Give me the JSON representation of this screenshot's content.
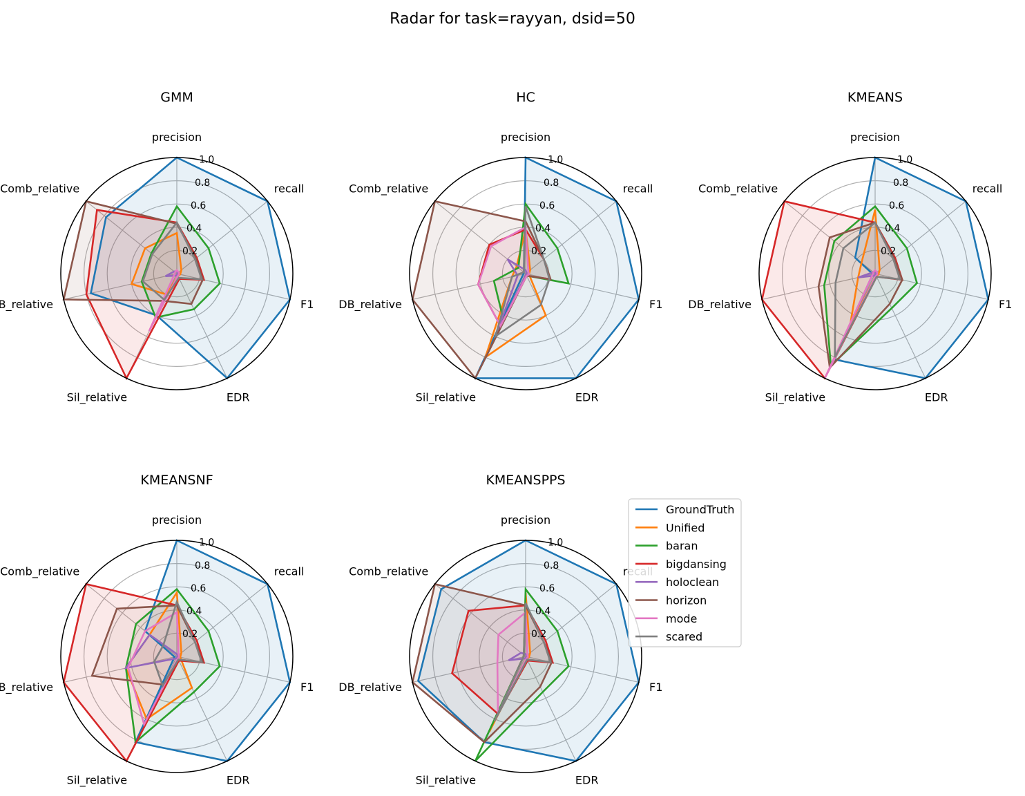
{
  "figure": {
    "title": "Radar for task=rayyan, dsid=50"
  },
  "axes": [
    "precision",
    "recall",
    "F1",
    "EDR",
    "Sil_relative",
    "DB_relative",
    "Comb_relative"
  ],
  "rticks": [
    "0.2",
    "0.4",
    "0.6",
    "0.8",
    "1.0"
  ],
  "legend": [
    {
      "name": "GroundTruth",
      "color": "#1f77b4"
    },
    {
      "name": "Unified",
      "color": "#ff7f0e"
    },
    {
      "name": "baran",
      "color": "#2ca02c"
    },
    {
      "name": "bigdansing",
      "color": "#d62728"
    },
    {
      "name": "holoclean",
      "color": "#9467bd"
    },
    {
      "name": "horizon",
      "color": "#8c564b"
    },
    {
      "name": "mode",
      "color": "#e377c2"
    },
    {
      "name": "scared",
      "color": "#7f7f7f"
    }
  ],
  "chart_data": [
    {
      "type": "radar",
      "title": "GMM",
      "rlim": [
        0,
        1
      ],
      "grid": true,
      "categories": [
        "precision",
        "recall",
        "F1",
        "EDR",
        "Sil_relative",
        "DB_relative",
        "Comb_relative"
      ],
      "series": [
        {
          "name": "GroundTruth",
          "color": "#1f77b4",
          "filled": true,
          "values": [
            1.0,
            1.0,
            1.0,
            1.0,
            0.4,
            0.76,
            0.78
          ]
        },
        {
          "name": "Unified",
          "color": "#ff7f0e",
          "values": [
            0.35,
            0.05,
            0.03,
            0.02,
            0.2,
            0.4,
            0.35
          ]
        },
        {
          "name": "baran",
          "color": "#2ca02c",
          "values": [
            0.58,
            0.35,
            0.38,
            0.34,
            0.42,
            0.31,
            0.28
          ]
        },
        {
          "name": "bigdansing",
          "color": "#d62728",
          "filled": true,
          "values": [
            0.44,
            0.22,
            0.24,
            0.05,
            1.0,
            0.8,
            0.88
          ]
        },
        {
          "name": "holoclean",
          "color": "#9467bd",
          "values": [
            0.02,
            0.01,
            0.01,
            0.01,
            0.02,
            0.1,
            0.03
          ]
        },
        {
          "name": "horizon",
          "color": "#8c564b",
          "filled": true,
          "values": [
            0.43,
            0.21,
            0.23,
            0.29,
            0.26,
            1.0,
            1.0
          ]
        },
        {
          "name": "mode",
          "color": "#e377c2",
          "values": [
            0.03,
            0.02,
            0.02,
            0.02,
            0.55,
            0.02,
            0.02
          ]
        },
        {
          "name": "scared",
          "color": "#7f7f7f",
          "values": [
            0.44,
            0.2,
            0.22,
            0.04,
            0.25,
            0.3,
            0.27
          ]
        }
      ]
    },
    {
      "type": "radar",
      "title": "HC",
      "rlim": [
        0,
        1
      ],
      "grid": true,
      "categories": [
        "precision",
        "recall",
        "F1",
        "EDR",
        "Sil_relative",
        "DB_relative",
        "Comb_relative"
      ],
      "series": [
        {
          "name": "GroundTruth",
          "color": "#1f77b4",
          "filled": true,
          "values": [
            1.0,
            1.0,
            1.0,
            1.0,
            1.0,
            0.02,
            0.02
          ]
        },
        {
          "name": "Unified",
          "color": "#ff7f0e",
          "values": [
            0.38,
            0.05,
            0.03,
            0.4,
            0.8,
            0.12,
            0.1
          ]
        },
        {
          "name": "baran",
          "color": "#2ca02c",
          "values": [
            0.6,
            0.35,
            0.38,
            0.02,
            0.44,
            0.28,
            0.08
          ]
        },
        {
          "name": "bigdansing",
          "color": "#d62728",
          "values": [
            0.38,
            0.2,
            0.22,
            0.02,
            0.5,
            0.42,
            0.4
          ]
        },
        {
          "name": "holoclean",
          "color": "#9467bd",
          "values": [
            0.03,
            0.01,
            0.01,
            0.01,
            0.6,
            0.07,
            0.2
          ]
        },
        {
          "name": "horizon",
          "color": "#8c564b",
          "filled": true,
          "values": [
            0.45,
            0.2,
            0.22,
            0.02,
            1.0,
            1.0,
            1.0
          ]
        },
        {
          "name": "mode",
          "color": "#e377c2",
          "values": [
            0.4,
            0.03,
            0.03,
            0.02,
            0.5,
            0.42,
            0.38
          ]
        },
        {
          "name": "scared",
          "color": "#7f7f7f",
          "values": [
            0.58,
            0.2,
            0.21,
            0.3,
            0.6,
            0.12,
            0.02
          ]
        }
      ]
    },
    {
      "type": "radar",
      "title": "KMEANS",
      "rlim": [
        0,
        1
      ],
      "grid": true,
      "categories": [
        "precision",
        "recall",
        "F1",
        "EDR",
        "Sil_relative",
        "DB_relative",
        "Comb_relative"
      ],
      "series": [
        {
          "name": "GroundTruth",
          "color": "#1f77b4",
          "filled": true,
          "values": [
            1.0,
            1.0,
            1.0,
            1.0,
            0.82,
            0.02,
            0.22
          ]
        },
        {
          "name": "Unified",
          "color": "#ff7f0e",
          "values": [
            0.55,
            0.05,
            0.03,
            0.02,
            0.5,
            0.15,
            0.15
          ]
        },
        {
          "name": "baran",
          "color": "#2ca02c",
          "values": [
            0.58,
            0.35,
            0.37,
            0.33,
            0.88,
            0.45,
            0.45
          ]
        },
        {
          "name": "bigdansing",
          "color": "#d62728",
          "filled": true,
          "values": [
            0.44,
            0.22,
            0.24,
            0.03,
            1.0,
            1.0,
            1.0
          ]
        },
        {
          "name": "holoclean",
          "color": "#9467bd",
          "values": [
            0.02,
            0.01,
            0.01,
            0.01,
            0.02,
            0.15,
            0.02
          ]
        },
        {
          "name": "horizon",
          "color": "#8c564b",
          "values": [
            0.44,
            0.21,
            0.24,
            0.29,
            0.9,
            0.5,
            0.5
          ]
        },
        {
          "name": "mode",
          "color": "#e377c2",
          "values": [
            0.03,
            0.02,
            0.02,
            0.02,
            1.0,
            0.02,
            0.02
          ]
        },
        {
          "name": "scared",
          "color": "#7f7f7f",
          "values": [
            0.44,
            0.2,
            0.22,
            0.03,
            0.8,
            0.35,
            0.35
          ]
        }
      ]
    },
    {
      "type": "radar",
      "title": "KMEANSNF",
      "rlim": [
        0,
        1
      ],
      "grid": true,
      "categories": [
        "precision",
        "recall",
        "F1",
        "EDR",
        "Sil_relative",
        "DB_relative",
        "Comb_relative"
      ],
      "series": [
        {
          "name": "GroundTruth",
          "color": "#1f77b4",
          "filled": true,
          "values": [
            1.0,
            1.0,
            1.0,
            1.0,
            0.82,
            0.02,
            0.35
          ]
        },
        {
          "name": "Unified",
          "color": "#ff7f0e",
          "values": [
            0.55,
            0.05,
            0.03,
            0.3,
            0.6,
            0.45,
            0.3
          ]
        },
        {
          "name": "baran",
          "color": "#2ca02c",
          "values": [
            0.58,
            0.35,
            0.38,
            0.34,
            0.82,
            0.45,
            0.45
          ]
        },
        {
          "name": "bigdansing",
          "color": "#d62728",
          "filled": true,
          "values": [
            0.44,
            0.22,
            0.24,
            0.04,
            1.0,
            1.0,
            1.0
          ]
        },
        {
          "name": "holoclean",
          "color": "#9467bd",
          "values": [
            0.02,
            0.01,
            0.01,
            0.01,
            0.02,
            0.45,
            0.3
          ]
        },
        {
          "name": "horizon",
          "color": "#8c564b",
          "values": [
            0.44,
            0.2,
            0.23,
            0.03,
            0.27,
            0.75,
            0.66
          ]
        },
        {
          "name": "mode",
          "color": "#e377c2",
          "values": [
            0.38,
            0.02,
            0.02,
            0.02,
            0.65,
            0.43,
            0.35
          ]
        },
        {
          "name": "scared",
          "color": "#7f7f7f",
          "values": [
            0.47,
            0.2,
            0.22,
            0.03,
            0.28,
            0.2,
            0.15
          ]
        }
      ]
    },
    {
      "type": "radar",
      "title": "KMEANSPPS",
      "rlim": [
        0,
        1
      ],
      "grid": true,
      "categories": [
        "precision",
        "recall",
        "F1",
        "EDR",
        "Sil_relative",
        "DB_relative",
        "Comb_relative"
      ],
      "series": [
        {
          "name": "GroundTruth",
          "color": "#1f77b4",
          "filled": true,
          "values": [
            1.0,
            1.0,
            1.0,
            1.0,
            0.82,
            0.95,
            0.93
          ]
        },
        {
          "name": "Unified",
          "color": "#ff7f0e",
          "values": [
            0.55,
            0.05,
            0.03,
            0.02,
            0.72,
            0.02,
            0.02
          ]
        },
        {
          "name": "baran",
          "color": "#2ca02c",
          "values": [
            0.58,
            0.35,
            0.38,
            0.34,
            1.0,
            0.02,
            0.02
          ]
        },
        {
          "name": "bigdansing",
          "color": "#d62728",
          "filled": true,
          "values": [
            0.44,
            0.22,
            0.24,
            0.04,
            0.55,
            0.65,
            0.63
          ]
        },
        {
          "name": "holoclean",
          "color": "#9467bd",
          "values": [
            0.02,
            0.01,
            0.01,
            0.01,
            0.02,
            0.15,
            0.05
          ]
        },
        {
          "name": "horizon",
          "color": "#8c564b",
          "filled": true,
          "values": [
            0.44,
            0.2,
            0.23,
            0.29,
            0.82,
            1.0,
            1.0
          ]
        },
        {
          "name": "mode",
          "color": "#e377c2",
          "values": [
            0.38,
            0.02,
            0.02,
            0.02,
            0.55,
            0.25,
            0.3
          ]
        },
        {
          "name": "scared",
          "color": "#7f7f7f",
          "values": [
            0.46,
            0.2,
            0.22,
            0.03,
            0.62,
            0.02,
            0.02
          ]
        }
      ]
    }
  ]
}
